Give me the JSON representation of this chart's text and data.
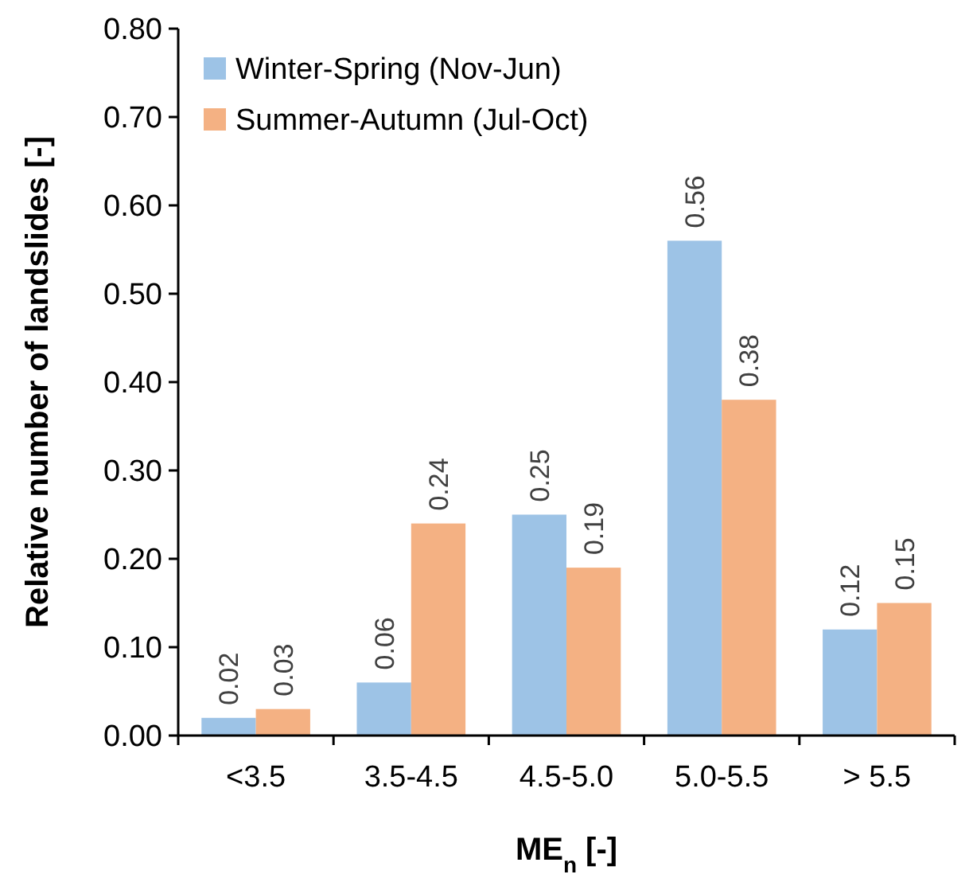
{
  "chart_data": {
    "type": "bar",
    "xlabel": "ME$_{n}$ [-]",
    "ylabel": "Relative number of landslides [-]",
    "categories": [
      "<3.5",
      "3.5-4.5",
      "4.5-5.0",
      "5.0-5.5",
      "> 5.5"
    ],
    "series": [
      {
        "name": "Winter-Spring (Nov-Jun)",
        "color": "#9dc3e6",
        "values": [
          0.02,
          0.06,
          0.25,
          0.56,
          0.12
        ]
      },
      {
        "name": "Summer-Autumn (Jul-Oct)",
        "color": "#f4b183",
        "values": [
          0.03,
          0.24,
          0.19,
          0.38,
          0.15
        ]
      }
    ],
    "ylim": [
      0,
      0.8
    ],
    "yticks": [
      {
        "value": 0,
        "label": "0.00"
      },
      {
        "value": 0.1,
        "label": "0.10"
      },
      {
        "value": 0.2,
        "label": "0.20"
      },
      {
        "value": 0.3,
        "label": "0.30"
      },
      {
        "value": 0.4,
        "label": "0.40"
      },
      {
        "value": 0.5,
        "label": "0.50"
      },
      {
        "value": 0.6,
        "label": "0.60"
      },
      {
        "value": 0.7,
        "label": "0.70"
      },
      {
        "value": 0.8,
        "label": "0.80"
      }
    ],
    "grid": false,
    "legend": "top left",
    "data_labels": true
  }
}
